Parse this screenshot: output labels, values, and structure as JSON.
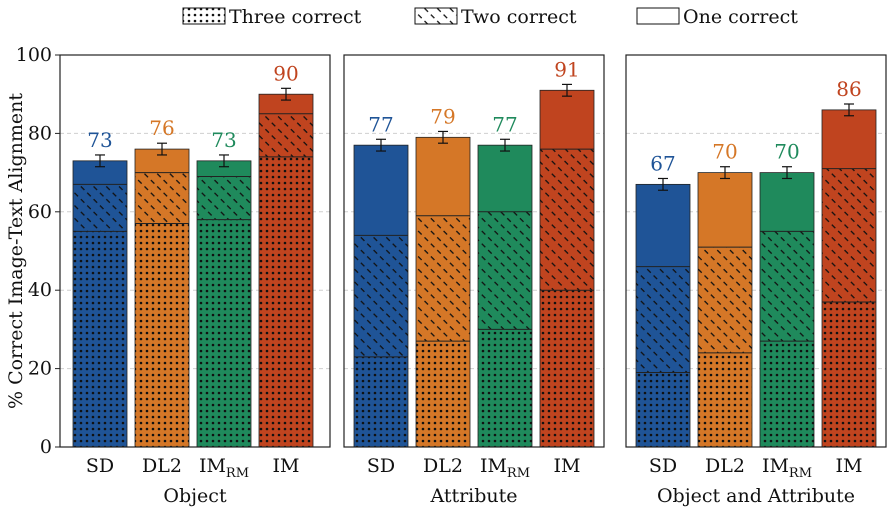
{
  "chart_data": {
    "type": "bar",
    "stacked": true,
    "ylabel": "% Correct Image-Text Alignment",
    "ylim": [
      0,
      100
    ],
    "yticks": [
      0,
      20,
      40,
      60,
      80,
      100
    ],
    "grid": true,
    "legend": {
      "placement": "top-center",
      "entries": [
        {
          "key": "three",
          "label": "Three correct",
          "pattern": "dots"
        },
        {
          "key": "two",
          "label": "Two correct",
          "pattern": "hatch"
        },
        {
          "key": "one",
          "label": "One correct",
          "pattern": "solid"
        }
      ]
    },
    "models": [
      {
        "name": "SD",
        "sub": "",
        "color": "#1f5497"
      },
      {
        "name": "DL2",
        "sub": "",
        "color": "#d57727"
      },
      {
        "name": "IM",
        "sub": "RM",
        "color": "#1f8a5c"
      },
      {
        "name": "IM",
        "sub": "",
        "color": "#c0441f"
      }
    ],
    "panels": [
      {
        "title": "Object",
        "three": [
          55,
          57,
          58,
          74
        ],
        "two": [
          67,
          70,
          69,
          85
        ],
        "one": [
          73,
          76,
          73,
          90
        ],
        "error": [
          1.5,
          1.5,
          1.5,
          1.5
        ],
        "labels": [
          "73",
          "76",
          "73",
          "90"
        ]
      },
      {
        "title": "Attribute",
        "three": [
          23,
          27,
          30,
          40
        ],
        "two": [
          54,
          59,
          60,
          76
        ],
        "one": [
          77,
          79,
          77,
          91
        ],
        "error": [
          1.5,
          1.5,
          1.5,
          1.5
        ],
        "labels": [
          "77",
          "79",
          "77",
          "91"
        ]
      },
      {
        "title": "Object and Attribute",
        "three": [
          19,
          24,
          27,
          37
        ],
        "two": [
          46,
          51,
          55,
          71
        ],
        "one": [
          67,
          70,
          70,
          86
        ],
        "error": [
          1.5,
          1.5,
          1.5,
          1.5
        ],
        "labels": [
          "67",
          "70",
          "70",
          "86"
        ]
      }
    ]
  }
}
